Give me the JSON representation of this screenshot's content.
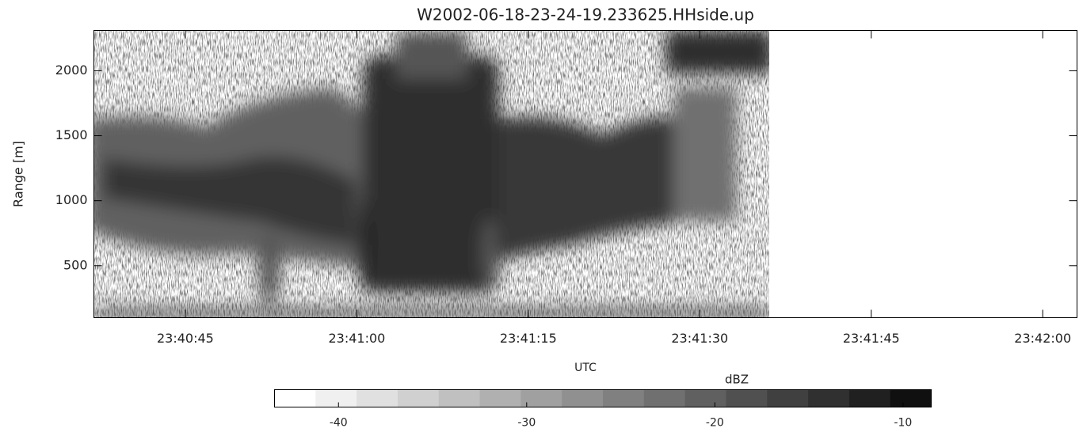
{
  "chart_data": {
    "type": "radar-image",
    "title": "W2002-06-18-23-24-19.233625.HHside.up",
    "xlabel": "UTC",
    "ylabel": "Range [m]",
    "xlim": [
      "23:40:37",
      "23:42:03"
    ],
    "xticks": [
      "23:40:45",
      "23:41:00",
      "23:41:15",
      "23:41:30",
      "23:41:45",
      "23:42:00"
    ],
    "ylim": [
      100,
      2310
    ],
    "yticks": [
      500,
      1000,
      1500,
      2000
    ],
    "colorbar": {
      "label": "dBZ",
      "lim": [
        -43.4,
        -8.5
      ],
      "ticks": [
        -40,
        -30,
        -20,
        -10
      ],
      "colors": [
        "#ffffff",
        "#f0f0f0",
        "#e0e0e0",
        "#d0d0d0",
        "#c0c0c0",
        "#b0b0b0",
        "#a0a0a0",
        "#909090",
        "#808080",
        "#707070",
        "#606060",
        "#505050",
        "#404040",
        "#303030",
        "#202020",
        "#101010"
      ]
    }
  }
}
